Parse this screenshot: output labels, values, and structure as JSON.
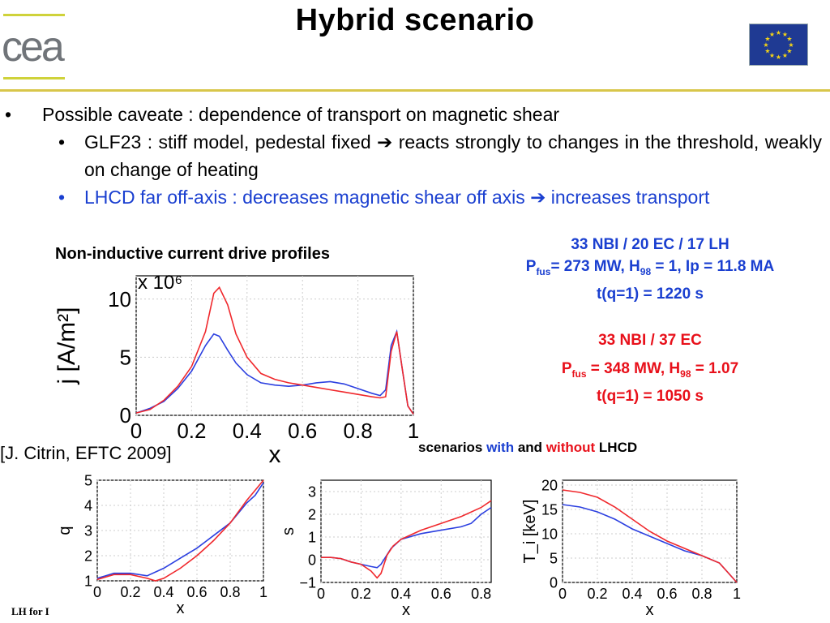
{
  "header": {
    "title": "Hybrid scenario",
    "logo_text": "cea",
    "flag": "eu-flag"
  },
  "bullets": {
    "main": "Possible caveate : dependence of transport on magnetic shear",
    "sub1_a": "GLF23 : stiff model, pedestal fixed",
    "sub1_b": "reacts strongly to changes in the threshold, weakly on change of heating",
    "sub2_a": "LHCD far off-axis : decreases magnetic shear off axis",
    "sub2_b": "increases transport",
    "arrow": "➔",
    "bullet_main": "•",
    "bullet_sub": "•"
  },
  "main_plot_title": "Non-inductive current drive profiles",
  "scenario_lh": {
    "line1": "33 NBI / 20 EC / 17 LH",
    "p": "P",
    "fus": "fus",
    "line2_rest": "= 273 MW, H",
    "h_sub": "98",
    "line2_end": " = 1, Ip = 11.8 MA",
    "line3": "t(q=1) = 1220 s"
  },
  "scenario_no_lh": {
    "line1": "33 NBI / 37 EC",
    "p": "P",
    "fus": "fus",
    "line2_rest": " = 348 MW, H",
    "h_sub": "98",
    "line2_end": " = 1.07",
    "line3": "t(q=1) = 1050 s"
  },
  "citation": "[J. Citrin, EFTC 2009]",
  "compare_caption": {
    "pre": "scenarios ",
    "with": "with",
    "mid": " and ",
    "without": "without",
    "post": " LHCD"
  },
  "footer": "LH for I",
  "colors": {
    "with_lh": "#2b3fe0",
    "without_lh": "#f0282c"
  },
  "chart_data": [
    {
      "type": "line",
      "title": "",
      "xlabel": "x",
      "ylabel": "j [A/m²]",
      "scale_label": "x 10⁶",
      "xlim": [
        0,
        1
      ],
      "ylim": [
        0,
        12
      ],
      "xticks": [
        "0",
        "0.2",
        "0.4",
        "0.6",
        "0.8",
        "1"
      ],
      "yticks": [
        "0",
        "5",
        "10"
      ],
      "series": [
        {
          "x": [
            0,
            0.05,
            0.1,
            0.15,
            0.2,
            0.25,
            0.28,
            0.3,
            0.33,
            0.36,
            0.4,
            0.45,
            0.5,
            0.55,
            0.6,
            0.65,
            0.7,
            0.75,
            0.8,
            0.85,
            0.88,
            0.9,
            0.92,
            0.94,
            0.96,
            0.98,
            1.0
          ],
          "values": [
            0.2,
            0.6,
            1.2,
            2.3,
            3.8,
            6.0,
            7.0,
            6.8,
            5.6,
            4.5,
            3.5,
            2.8,
            2.6,
            2.5,
            2.6,
            2.8,
            2.9,
            2.7,
            2.3,
            1.9,
            1.7,
            2.2,
            6.0,
            7.2,
            4.0,
            0.8,
            0.1
          ]
        },
        {
          "x": [
            0,
            0.05,
            0.1,
            0.15,
            0.2,
            0.25,
            0.28,
            0.3,
            0.33,
            0.36,
            0.4,
            0.45,
            0.5,
            0.55,
            0.6,
            0.65,
            0.7,
            0.75,
            0.8,
            0.85,
            0.88,
            0.9,
            0.92,
            0.94,
            0.96,
            0.98,
            1.0
          ],
          "values": [
            0.2,
            0.5,
            1.3,
            2.5,
            4.2,
            7.2,
            10.5,
            11.0,
            9.5,
            7.0,
            5.0,
            3.6,
            3.1,
            2.8,
            2.6,
            2.4,
            2.2,
            2.0,
            1.8,
            1.6,
            1.5,
            1.6,
            5.5,
            7.2,
            4.0,
            0.8,
            0.1
          ]
        }
      ]
    },
    {
      "type": "line",
      "xlabel": "x",
      "ylabel": "q",
      "xlim": [
        0,
        1
      ],
      "ylim": [
        1,
        5
      ],
      "xticks": [
        "0",
        "0.2",
        "0.4",
        "0.6",
        "0.8",
        "1"
      ],
      "yticks": [
        "1",
        "2",
        "3",
        "4",
        "5"
      ],
      "series": [
        {
          "x": [
            0,
            0.1,
            0.2,
            0.3,
            0.4,
            0.5,
            0.6,
            0.7,
            0.8,
            0.9,
            0.95,
            1.0
          ],
          "values": [
            1.1,
            1.3,
            1.3,
            1.2,
            1.5,
            1.9,
            2.3,
            2.8,
            3.3,
            4.1,
            4.4,
            4.9
          ]
        },
        {
          "x": [
            0,
            0.1,
            0.2,
            0.3,
            0.35,
            0.4,
            0.5,
            0.6,
            0.7,
            0.8,
            0.9,
            0.95,
            1.0
          ],
          "values": [
            1.05,
            1.25,
            1.25,
            1.1,
            1.0,
            1.1,
            1.5,
            2.0,
            2.6,
            3.3,
            4.2,
            4.6,
            5.0
          ]
        }
      ]
    },
    {
      "type": "line",
      "xlabel": "x",
      "ylabel": "s",
      "xlim": [
        0,
        0.85
      ],
      "ylim": [
        -1,
        3.5
      ],
      "xticks": [
        "0",
        "0.2",
        "0.4",
        "0.6",
        "0.8"
      ],
      "yticks": [
        "−1",
        "0",
        "1",
        "2",
        "3"
      ],
      "series": [
        {
          "x": [
            0,
            0.05,
            0.1,
            0.15,
            0.2,
            0.25,
            0.28,
            0.3,
            0.35,
            0.4,
            0.5,
            0.6,
            0.7,
            0.75,
            0.8,
            0.85
          ],
          "values": [
            0.1,
            0.1,
            0.05,
            -0.1,
            -0.2,
            -0.3,
            -0.35,
            -0.2,
            0.5,
            0.9,
            1.15,
            1.3,
            1.45,
            1.6,
            2.0,
            2.3
          ]
        },
        {
          "x": [
            0,
            0.05,
            0.1,
            0.15,
            0.2,
            0.25,
            0.28,
            0.3,
            0.33,
            0.36,
            0.4,
            0.5,
            0.6,
            0.7,
            0.8,
            0.85
          ],
          "values": [
            0.1,
            0.1,
            0.05,
            -0.1,
            -0.2,
            -0.5,
            -0.8,
            -0.6,
            0.2,
            0.6,
            0.9,
            1.3,
            1.6,
            1.9,
            2.3,
            2.6
          ]
        }
      ]
    },
    {
      "type": "line",
      "xlabel": "x",
      "ylabel": "T_i [keV]",
      "xlim": [
        0,
        1
      ],
      "ylim": [
        0,
        21
      ],
      "xticks": [
        "0",
        "0.2",
        "0.4",
        "0.6",
        "0.8",
        "1"
      ],
      "yticks": [
        "0",
        "5",
        "10",
        "15",
        "20"
      ],
      "series": [
        {
          "x": [
            0,
            0.1,
            0.2,
            0.3,
            0.4,
            0.5,
            0.6,
            0.7,
            0.8,
            0.9,
            0.95,
            1.0
          ],
          "values": [
            16,
            15.5,
            14.5,
            13,
            11,
            9.5,
            8,
            6.5,
            5.5,
            4,
            2,
            0
          ]
        },
        {
          "x": [
            0,
            0.1,
            0.2,
            0.3,
            0.4,
            0.5,
            0.6,
            0.7,
            0.8,
            0.9,
            0.95,
            1.0
          ],
          "values": [
            19,
            18.5,
            17.5,
            15.5,
            13,
            10.5,
            8.5,
            7,
            5.5,
            4,
            2,
            0
          ]
        }
      ]
    }
  ]
}
